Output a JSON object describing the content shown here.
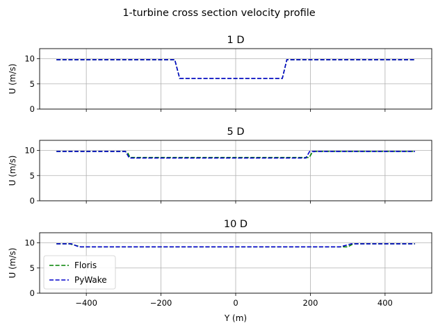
{
  "suptitle": "1-turbine cross section velocity profile",
  "legend": {
    "placement": "lower-left",
    "entries": [
      "Floris",
      "PyWake"
    ]
  },
  "colors": {
    "Floris": "#008000",
    "PyWake": "#0000cc"
  },
  "chart_data": [
    {
      "type": "line",
      "title": "1 D",
      "xlabel": "",
      "ylabel": "U (m/s)",
      "xlim": [
        -525,
        525
      ],
      "ylim": [
        0,
        12
      ],
      "xticks": [
        -400,
        -200,
        0,
        200,
        400
      ],
      "yticks": [
        0,
        5,
        10
      ],
      "xtick_labels_shown": false,
      "grid": true,
      "series": [
        {
          "name": "Floris",
          "style": "dashed",
          "x": [
            -480,
            -163,
            -150,
            125,
            137,
            480
          ],
          "y": [
            9.8,
            9.8,
            6.1,
            6.1,
            9.8,
            9.8
          ]
        },
        {
          "name": "PyWake",
          "style": "dashed",
          "x": [
            -480,
            -163,
            -150,
            125,
            137,
            480
          ],
          "y": [
            9.8,
            9.8,
            6.1,
            6.1,
            9.8,
            9.8
          ]
        }
      ]
    },
    {
      "type": "line",
      "title": "5 D",
      "xlabel": "",
      "ylabel": "U (m/s)",
      "xlim": [
        -525,
        525
      ],
      "ylim": [
        0,
        12
      ],
      "xticks": [
        -400,
        -200,
        0,
        200,
        400
      ],
      "yticks": [
        0,
        5,
        10
      ],
      "xtick_labels_shown": false,
      "grid": true,
      "series": [
        {
          "name": "Floris",
          "style": "dashed",
          "x": [
            -480,
            -297,
            -289,
            -283,
            197,
            204,
            211,
            480
          ],
          "y": [
            9.8,
            9.8,
            9.5,
            8.6,
            8.6,
            9.5,
            9.8,
            9.8
          ]
        },
        {
          "name": "PyWake",
          "style": "dashed",
          "x": [
            -480,
            -295,
            -285,
            188,
            198,
            480
          ],
          "y": [
            9.8,
            9.8,
            8.5,
            8.5,
            9.8,
            9.8
          ]
        }
      ]
    },
    {
      "type": "line",
      "title": "10 D",
      "xlabel": "Y (m)",
      "ylabel": "U (m/s)",
      "xlim": [
        -525,
        525
      ],
      "ylim": [
        0,
        12
      ],
      "xticks": [
        -400,
        -200,
        0,
        200,
        400
      ],
      "yticks": [
        0,
        5,
        10
      ],
      "xtick_labels_shown": true,
      "grid": true,
      "series": [
        {
          "name": "Floris",
          "style": "dashed",
          "x": [
            -480,
            -445,
            -430,
            -415,
            280,
            300,
            315,
            480
          ],
          "y": [
            9.8,
            9.8,
            9.5,
            9.2,
            9.2,
            9.2,
            9.8,
            9.8
          ]
        },
        {
          "name": "PyWake",
          "style": "dashed",
          "x": [
            -480,
            -440,
            -420,
            280,
            310,
            480
          ],
          "y": [
            9.8,
            9.8,
            9.2,
            9.2,
            9.8,
            9.8
          ]
        }
      ]
    }
  ]
}
